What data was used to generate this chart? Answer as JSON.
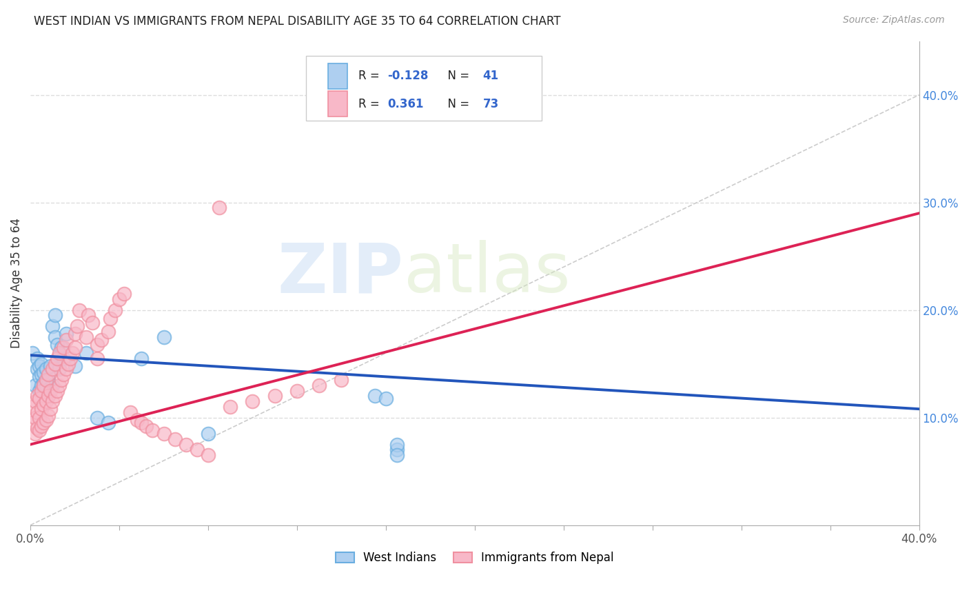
{
  "title": "WEST INDIAN VS IMMIGRANTS FROM NEPAL DISABILITY AGE 35 TO 64 CORRELATION CHART",
  "source": "Source: ZipAtlas.com",
  "ylabel": "Disability Age 35 to 64",
  "watermark_zip": "ZIP",
  "watermark_atlas": "atlas",
  "x_min": 0.0,
  "x_max": 0.4,
  "y_min": 0.0,
  "y_max": 0.45,
  "x_ticks": [
    0.0,
    0.04,
    0.08,
    0.12,
    0.16,
    0.2,
    0.24,
    0.28,
    0.32,
    0.36,
    0.4
  ],
  "y_ticks_right": [
    0.1,
    0.2,
    0.3,
    0.4
  ],
  "y_tick_labels_right": [
    "10.0%",
    "20.0%",
    "30.0%",
    "40.0%"
  ],
  "legend_label1": "West Indians",
  "legend_label2": "Immigrants from Nepal",
  "blue_color": "#6aaee0",
  "pink_color": "#f090a0",
  "blue_fill": "#aecff0",
  "pink_fill": "#f8b8c8",
  "blue_line_color": "#2255bb",
  "pink_line_color": "#dd2255",
  "diagonal_line_color": "#cccccc",
  "grid_color": "#dddddd",
  "legend_r_color": "#3366cc",
  "legend_n_color": "#3366cc",
  "west_indians_x": [
    0.001,
    0.002,
    0.003,
    0.003,
    0.004,
    0.004,
    0.004,
    0.005,
    0.005,
    0.005,
    0.006,
    0.006,
    0.006,
    0.007,
    0.007,
    0.008,
    0.008,
    0.009,
    0.009,
    0.01,
    0.01,
    0.011,
    0.011,
    0.012,
    0.013,
    0.013,
    0.014,
    0.015,
    0.016,
    0.02,
    0.025,
    0.03,
    0.035,
    0.05,
    0.06,
    0.08,
    0.155,
    0.16,
    0.165,
    0.165,
    0.165
  ],
  "west_indians_y": [
    0.16,
    0.13,
    0.145,
    0.155,
    0.125,
    0.138,
    0.148,
    0.13,
    0.14,
    0.15,
    0.125,
    0.132,
    0.142,
    0.128,
    0.145,
    0.12,
    0.135,
    0.128,
    0.148,
    0.13,
    0.185,
    0.195,
    0.175,
    0.168,
    0.158,
    0.145,
    0.165,
    0.155,
    0.178,
    0.148,
    0.16,
    0.1,
    0.095,
    0.155,
    0.175,
    0.085,
    0.12,
    0.118,
    0.07,
    0.075,
    0.065
  ],
  "nepal_x": [
    0.001,
    0.001,
    0.002,
    0.002,
    0.002,
    0.003,
    0.003,
    0.003,
    0.004,
    0.004,
    0.004,
    0.005,
    0.005,
    0.005,
    0.006,
    0.006,
    0.006,
    0.007,
    0.007,
    0.007,
    0.008,
    0.008,
    0.008,
    0.009,
    0.009,
    0.01,
    0.01,
    0.011,
    0.011,
    0.012,
    0.012,
    0.013,
    0.013,
    0.014,
    0.015,
    0.015,
    0.016,
    0.016,
    0.017,
    0.018,
    0.019,
    0.02,
    0.02,
    0.021,
    0.022,
    0.025,
    0.026,
    0.028,
    0.03,
    0.03,
    0.032,
    0.035,
    0.036,
    0.038,
    0.04,
    0.042,
    0.045,
    0.048,
    0.05,
    0.052,
    0.055,
    0.06,
    0.065,
    0.07,
    0.075,
    0.08,
    0.085,
    0.09,
    0.1,
    0.11,
    0.12,
    0.13,
    0.14
  ],
  "nepal_y": [
    0.095,
    0.11,
    0.085,
    0.1,
    0.115,
    0.09,
    0.105,
    0.12,
    0.088,
    0.1,
    0.118,
    0.092,
    0.108,
    0.125,
    0.095,
    0.112,
    0.13,
    0.098,
    0.115,
    0.135,
    0.102,
    0.12,
    0.14,
    0.108,
    0.125,
    0.115,
    0.145,
    0.12,
    0.15,
    0.125,
    0.155,
    0.13,
    0.16,
    0.135,
    0.14,
    0.165,
    0.145,
    0.172,
    0.15,
    0.155,
    0.16,
    0.165,
    0.178,
    0.185,
    0.2,
    0.175,
    0.195,
    0.188,
    0.155,
    0.168,
    0.172,
    0.18,
    0.192,
    0.2,
    0.21,
    0.215,
    0.105,
    0.098,
    0.095,
    0.092,
    0.088,
    0.085,
    0.08,
    0.075,
    0.07,
    0.065,
    0.295,
    0.11,
    0.115,
    0.12,
    0.125,
    0.13,
    0.135
  ],
  "blue_trend_x": [
    0.0,
    0.4
  ],
  "blue_trend_y": [
    0.158,
    0.108
  ],
  "pink_trend_x": [
    0.0,
    0.4
  ],
  "pink_trend_y": [
    0.075,
    0.29
  ]
}
